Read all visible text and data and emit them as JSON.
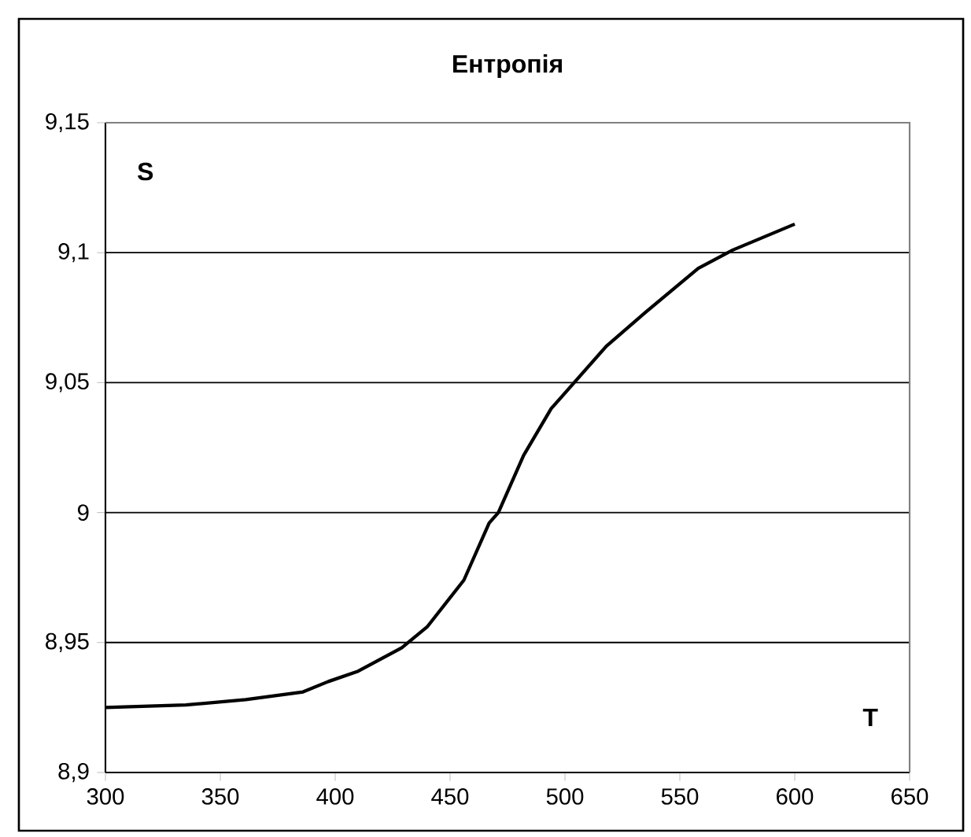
{
  "chart_data": {
    "type": "line",
    "title": "Ентропія",
    "xlabel": "T",
    "ylabel": "S",
    "x": [
      300,
      335,
      361,
      386,
      397,
      410,
      429,
      440,
      448,
      456,
      467,
      471,
      482,
      494,
      504,
      518,
      535,
      558,
      573,
      600
    ],
    "series": [
      {
        "color": "#000000",
        "values": [
          8.925,
          8.926,
          8.928,
          8.931,
          8.935,
          8.939,
          8.948,
          8.956,
          8.965,
          8.974,
          8.996,
          9.0,
          9.022,
          9.04,
          9.05,
          9.064,
          9.077,
          9.094,
          9.101,
          9.111
        ]
      }
    ],
    "xlim": [
      300,
      650
    ],
    "xticks": [
      300,
      350,
      400,
      450,
      500,
      550,
      600,
      650
    ],
    "ylim": [
      8.9,
      9.15
    ],
    "yticks": [
      {
        "value": 8.9,
        "label": "8,9"
      },
      {
        "value": 8.95,
        "label": "8,95"
      },
      {
        "value": 9.0,
        "label": "9"
      },
      {
        "value": 9.05,
        "label": "9,05"
      },
      {
        "value": 9.1,
        "label": "9,1"
      },
      {
        "value": 9.15,
        "label": "9,15"
      }
    ],
    "grid": "y",
    "marker": "none",
    "line_style": "solid"
  }
}
